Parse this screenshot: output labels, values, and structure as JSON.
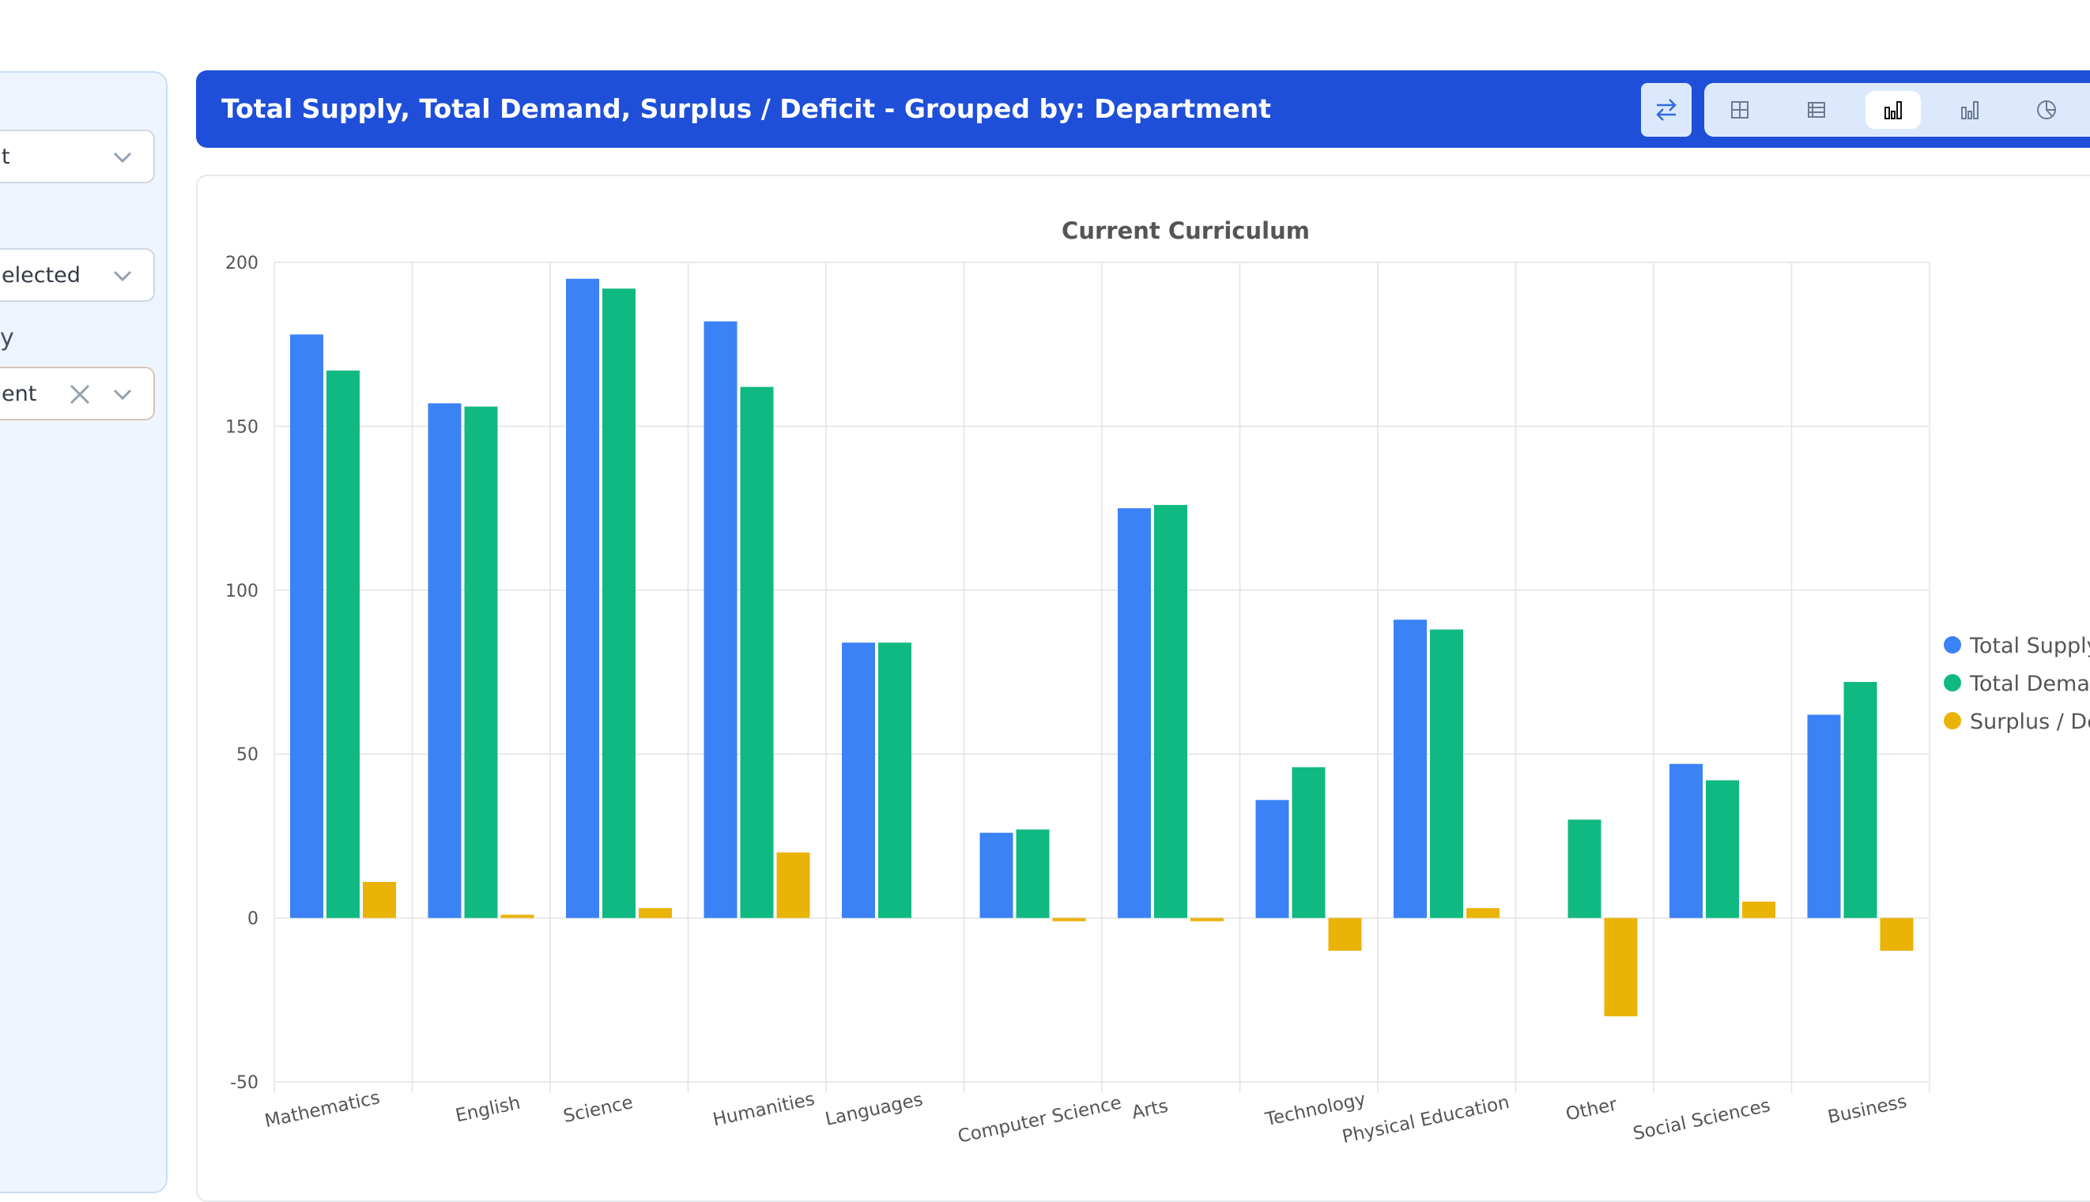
{
  "sidebar": {
    "select1_value": "t",
    "select2_value": "elected",
    "group_label": "y",
    "select3_value": "ent"
  },
  "header": {
    "title": "Total Supply, Total Demand, Surplus / Deficit - Grouped by: Department",
    "views": [
      "grid-view",
      "table-view",
      "grouped-bar-view",
      "bar-view",
      "pie-view"
    ],
    "active_view": "grouped-bar-view"
  },
  "chart_data": {
    "type": "bar",
    "title": "Current Curriculum",
    "xlabel": "",
    "ylabel": "",
    "ylim": [
      -50,
      200
    ],
    "yticks": [
      200,
      150,
      100,
      50,
      0,
      -50
    ],
    "grid": true,
    "legend_position": "right",
    "categories": [
      "Mathematics",
      "English",
      "Science",
      "Humanities",
      "Languages",
      "Computer Science",
      "Arts",
      "Technology",
      "Physical Education",
      "Other",
      "Social Sciences",
      "Business"
    ],
    "series": [
      {
        "name": "Total Supply",
        "color": "#3b82f6",
        "values": [
          178,
          157,
          195,
          182,
          84,
          26,
          125,
          36,
          91,
          0,
          47,
          62
        ]
      },
      {
        "name": "Total Demand",
        "color": "#10b981",
        "values": [
          167,
          156,
          192,
          162,
          84,
          27,
          126,
          46,
          88,
          30,
          42,
          72
        ]
      },
      {
        "name": "Surplus / Deficit",
        "color": "#eab308",
        "values": [
          11,
          1,
          3,
          20,
          0,
          -1,
          -1,
          -10,
          3,
          -30,
          5,
          -10
        ]
      }
    ]
  }
}
